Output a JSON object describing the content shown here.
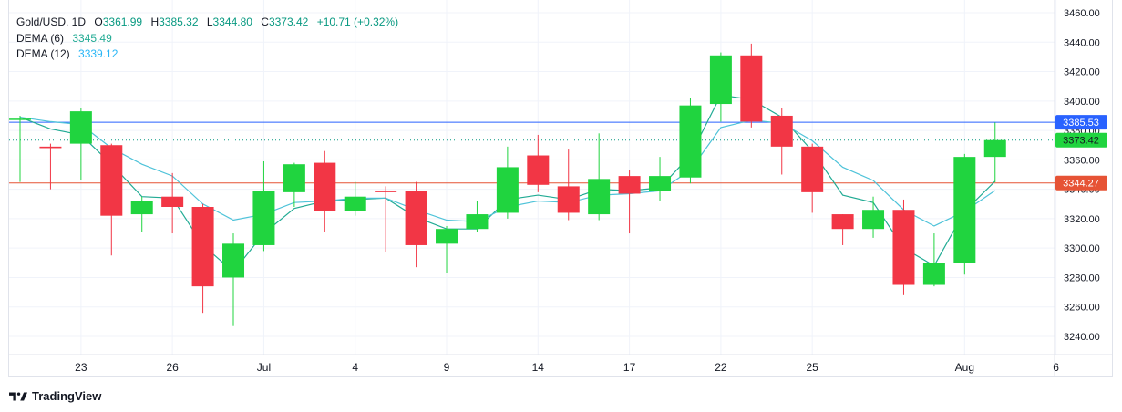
{
  "legend": {
    "symbol": "Gold/USD, 1D",
    "o_label": "O",
    "o_value": "3361.99",
    "h_label": "H",
    "h_value": "3385.32",
    "l_label": "L",
    "l_value": "3344.80",
    "c_label": "C",
    "c_value": "3373.42",
    "change": "+10.71 (+0.32%)",
    "dema6_label": "DEMA (6)",
    "dema6_value": "3345.49",
    "dema12_label": "DEMA (12)",
    "dema12_value": "3339.12"
  },
  "footer": {
    "brand": "TradingView"
  },
  "colors": {
    "up": "#20d43f",
    "down": "#f23645",
    "dema6": "#22ab94",
    "dema12": "#4fc3d9",
    "price_line": "#2962ff",
    "support_line": "#e65335",
    "grid": "#f0f3fa"
  },
  "chart_data": {
    "type": "candlestick",
    "symbol": "Gold/USD",
    "interval": "1D",
    "ylim": [
      3230,
      3465
    ],
    "y_ticks": [
      3240,
      3260,
      3280,
      3300,
      3320,
      3340,
      3360,
      3380,
      3400,
      3420,
      3440,
      3460
    ],
    "y_tick_labels": [
      "3240.00",
      "3260.00",
      "3280.00",
      "3300.00",
      "3320.00",
      "3340.00",
      "3360.00",
      "3380.00",
      "3400.00",
      "3420.00",
      "3440.00",
      "3460.00"
    ],
    "x_tick_labels": [
      {
        "label": "23",
        "index": 2
      },
      {
        "label": "26",
        "index": 5
      },
      {
        "label": "Jul",
        "index": 8
      },
      {
        "label": "4",
        "index": 11
      },
      {
        "label": "9",
        "index": 14
      },
      {
        "label": "14",
        "index": 17
      },
      {
        "label": "17",
        "index": 20
      },
      {
        "label": "22",
        "index": 23
      },
      {
        "label": "25",
        "index": 26
      },
      {
        "label": "Aug",
        "index": 31
      },
      {
        "label": "6",
        "index": 34
      }
    ],
    "candles": [
      {
        "o": 3388,
        "h": 3390,
        "l": 3345,
        "c": 3388
      },
      {
        "o": 3369,
        "h": 3371,
        "l": 3340,
        "c": 3368
      },
      {
        "o": 3371,
        "h": 3395,
        "l": 3346,
        "c": 3393
      },
      {
        "o": 3370,
        "h": 3371,
        "l": 3295,
        "c": 3322
      },
      {
        "o": 3323,
        "h": 3335,
        "l": 3311,
        "c": 3332
      },
      {
        "o": 3335,
        "h": 3351,
        "l": 3310,
        "c": 3328
      },
      {
        "o": 3328,
        "h": 3330,
        "l": 3256,
        "c": 3274
      },
      {
        "o": 3280,
        "h": 3310,
        "l": 3247,
        "c": 3303
      },
      {
        "o": 3302,
        "h": 3359,
        "l": 3298,
        "c": 3339
      },
      {
        "o": 3338,
        "h": 3358,
        "l": 3328,
        "c": 3357
      },
      {
        "o": 3358,
        "h": 3366,
        "l": 3311,
        "c": 3325
      },
      {
        "o": 3325,
        "h": 3345,
        "l": 3322,
        "c": 3335
      },
      {
        "o": 3339,
        "h": 3342,
        "l": 3297,
        "c": 3338
      },
      {
        "o": 3339,
        "h": 3345,
        "l": 3287,
        "c": 3302
      },
      {
        "o": 3303,
        "h": 3315,
        "l": 3283,
        "c": 3313
      },
      {
        "o": 3313,
        "h": 3332,
        "l": 3311,
        "c": 3323
      },
      {
        "o": 3324,
        "h": 3369,
        "l": 3320,
        "c": 3355
      },
      {
        "o": 3363,
        "h": 3377,
        "l": 3338,
        "c": 3343
      },
      {
        "o": 3342,
        "h": 3367,
        "l": 3319,
        "c": 3324
      },
      {
        "o": 3323,
        "h": 3378,
        "l": 3319,
        "c": 3347
      },
      {
        "o": 3349,
        "h": 3353,
        "l": 3310,
        "c": 3337
      },
      {
        "o": 3339,
        "h": 3362,
        "l": 3332,
        "c": 3349
      },
      {
        "o": 3348,
        "h": 3402,
        "l": 3344,
        "c": 3397
      },
      {
        "o": 3398,
        "h": 3433,
        "l": 3386,
        "c": 3431
      },
      {
        "o": 3431,
        "h": 3439,
        "l": 3382,
        "c": 3386
      },
      {
        "o": 3390,
        "h": 3395,
        "l": 3350,
        "c": 3369
      },
      {
        "o": 3369,
        "h": 3371,
        "l": 3324,
        "c": 3338
      },
      {
        "o": 3323,
        "h": 3323,
        "l": 3302,
        "c": 3313
      },
      {
        "o": 3313,
        "h": 3335,
        "l": 3307,
        "c": 3326
      },
      {
        "o": 3326,
        "h": 3333,
        "l": 3268,
        "c": 3275
      },
      {
        "o": 3275,
        "h": 3310,
        "l": 3274,
        "c": 3290
      },
      {
        "o": 3290,
        "h": 3364,
        "l": 3282,
        "c": 3362
      },
      {
        "o": 3362,
        "h": 3385.32,
        "l": 3344.8,
        "c": 3373.42
      }
    ],
    "series": [
      {
        "name": "DEMA (6)",
        "values": [
          3389,
          3381,
          3377,
          3357,
          3335,
          3334,
          3302,
          3284,
          3310,
          3327,
          3332,
          3333,
          3334,
          3321,
          3313,
          3313,
          3333,
          3336,
          3333,
          3340,
          3339,
          3341,
          3363,
          3404,
          3401,
          3389,
          3366,
          3336,
          3331,
          3300,
          3288,
          3325,
          3345.49
        ]
      },
      {
        "name": "DEMA (12)",
        "values": [
          3389,
          3386,
          3384,
          3368,
          3357,
          3349,
          3330,
          3319,
          3323,
          3331,
          3332,
          3334,
          3334,
          3326,
          3319,
          3318,
          3328,
          3332,
          3331,
          3336,
          3337,
          3339,
          3353,
          3382,
          3387,
          3385,
          3373,
          3355,
          3346,
          3326,
          3315,
          3325,
          3339.12
        ]
      }
    ],
    "price_lines": [
      {
        "value": 3385.53,
        "label": "3385.53",
        "color": "#2962ff",
        "style": "solid"
      },
      {
        "value": 3373.42,
        "label": "3373.42",
        "color": "#089981",
        "style": "dotted"
      },
      {
        "value": 3344.27,
        "label": "3344.27",
        "color": "#e65335",
        "style": "solid"
      }
    ]
  }
}
